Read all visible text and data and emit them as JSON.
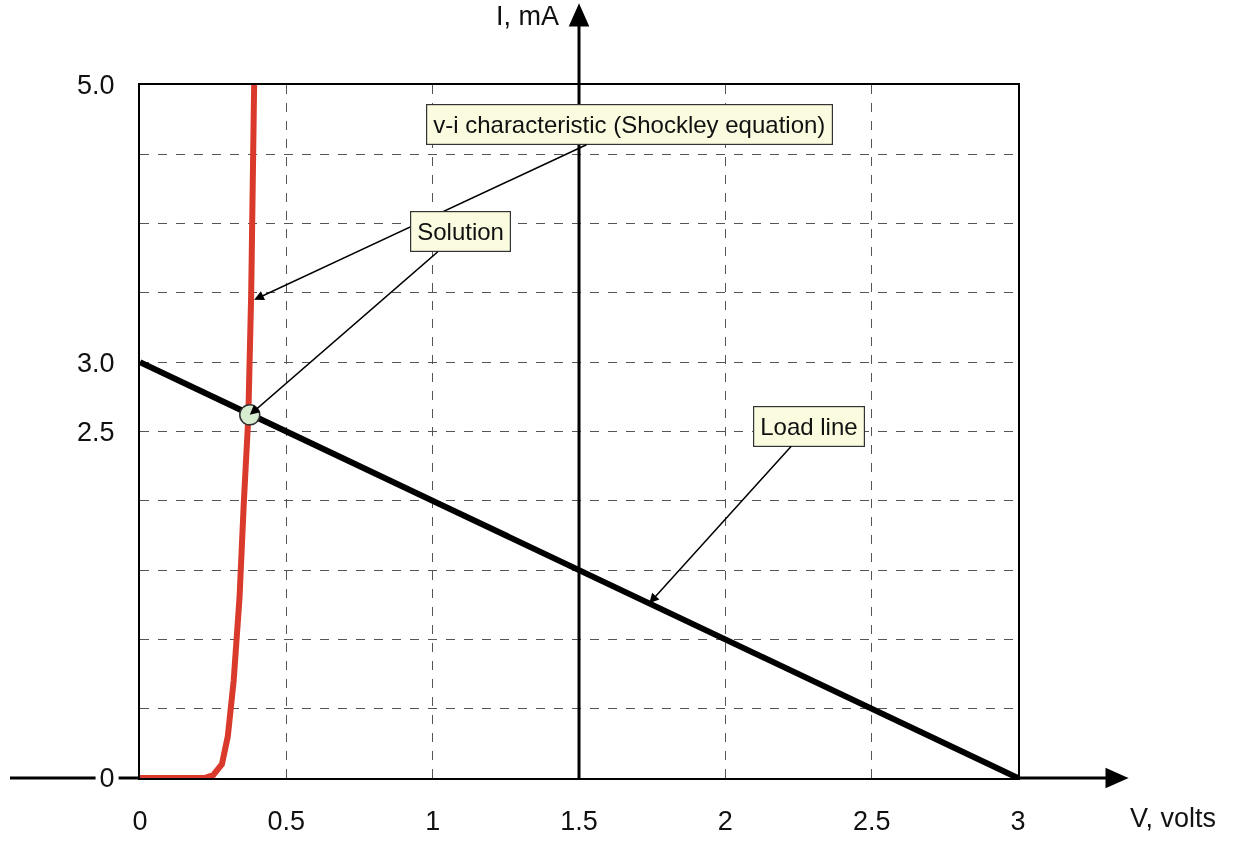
{
  "chart_data": {
    "type": "line",
    "xlabel": "V, volts",
    "ylabel": "I, mA",
    "xlim": [
      0,
      3
    ],
    "ylim": [
      0,
      5
    ],
    "xticks": [
      0,
      0.5,
      1,
      1.5,
      2,
      2.5,
      3
    ],
    "yticks": [
      0,
      {
        "value": 0.5,
        "label": null
      },
      {
        "value": 1,
        "label": null
      },
      {
        "value": 1.5,
        "label": null
      },
      {
        "value": 2,
        "label": null
      },
      2.5,
      {
        "value": 3,
        "label": "3.0"
      },
      {
        "value": 3.5,
        "label": null
      },
      {
        "value": 4,
        "label": null
      },
      {
        "value": 4.5,
        "label": null
      },
      {
        "value": 5,
        "label": "5.0"
      }
    ],
    "grid": true,
    "line_style": "solid",
    "ref_lines": [
      {
        "axis": "x",
        "value": 1.5
      }
    ],
    "series": [
      {
        "color": "#d93a2b",
        "x": [
          0,
          0.22,
          0.25,
          0.28,
          0.3,
          0.32,
          0.34,
          0.355,
          0.37,
          0.38,
          0.39
        ],
        "values": [
          0,
          0,
          0.02,
          0.1,
          0.3,
          0.7,
          1.3,
          2,
          2.6,
          3.5,
          5
        ]
      },
      {
        "color": "#000000",
        "x": [
          0,
          3
        ],
        "values": [
          3,
          0
        ]
      },
      {
        "type": "scatter",
        "color": "#d8ecd0",
        "marker": "circle",
        "x": [
          0.375
        ],
        "values": [
          2.62
        ]
      }
    ],
    "annotations": [
      {
        "text": "v-i characteristic (Shockley equation)",
        "x": 0.39,
        "y": 3.45
      },
      {
        "text": "Solution",
        "x": 0.375,
        "y": 2.62
      },
      {
        "text": "Load line",
        "x": 1.74,
        "y": 1.26
      }
    ]
  }
}
